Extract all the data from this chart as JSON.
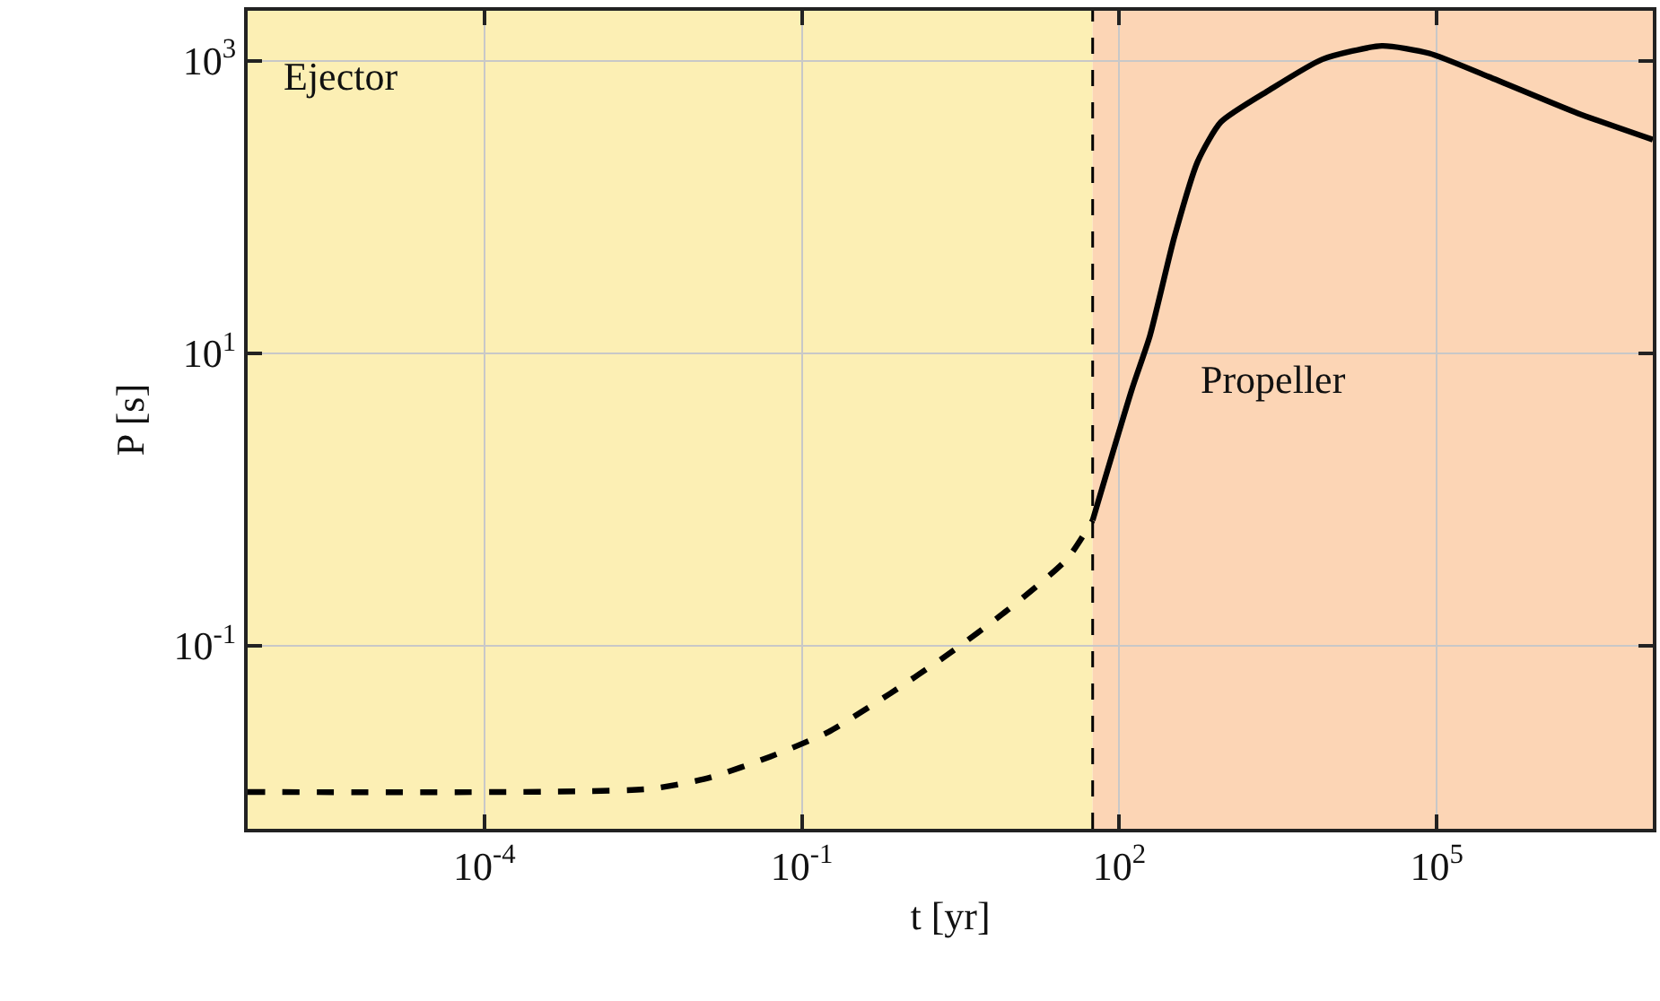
{
  "chart_data": {
    "type": "line",
    "xlabel": "t [yr]",
    "ylabel": "P [s]",
    "log": "xy",
    "grid": true,
    "marker": "none",
    "xlim": [
      5.8e-07,
      11000000.0
    ],
    "ylim": [
      0.0056,
      2190
    ],
    "xticks": [
      {
        "value": 0.0001,
        "label": "10$^{-4}$"
      },
      {
        "value": 0.1,
        "label": "10$^{-1}$"
      },
      {
        "value": 100,
        "label": "10$^{2}$"
      },
      {
        "value": 100000,
        "label": "10$^{5}$"
      }
    ],
    "yticks": [
      {
        "value": 0.1,
        "label": "10$^{-1}$"
      },
      {
        "value": 10,
        "label": "10$^{1}$"
      },
      {
        "value": 1000,
        "label": "10$^{3}$"
      }
    ],
    "series": [
      {
        "color": "#000000",
        "line_style": "dashed",
        "x": [
          5.8e-07,
          0.0037,
          0.0138,
          0.05,
          0.178,
          0.68,
          2.4,
          8.7,
          32,
          56
        ],
        "values": [
          0.01,
          0.0105,
          0.0126,
          0.0174,
          0.0257,
          0.047,
          0.087,
          0.174,
          0.39,
          0.72
        ]
      },
      {
        "color": "#000000",
        "line_style": "solid",
        "x": [
          56,
          132,
          195,
          331,
          550,
          912,
          2630,
          8300,
          30200,
          85000,
          309000,
          2140000,
          11000000
        ],
        "values": [
          0.72,
          5.7,
          13.2,
          62,
          204,
          380,
          630,
          1020,
          1260,
          1120,
          776,
          437,
          288
        ]
      }
    ],
    "bands": [
      {
        "axis": "x",
        "from": 5.8e-07,
        "to": 56,
        "label": "Ejector",
        "color": "#fcefb4"
      },
      {
        "axis": "x",
        "from": 56,
        "to": 11000000.0,
        "label": "Propeller",
        "color": "#fcd5b5"
      }
    ],
    "ref_lines": [
      {
        "axis": "x",
        "value": 56,
        "color": "#000000",
        "line_style": "dashed"
      }
    ]
  }
}
